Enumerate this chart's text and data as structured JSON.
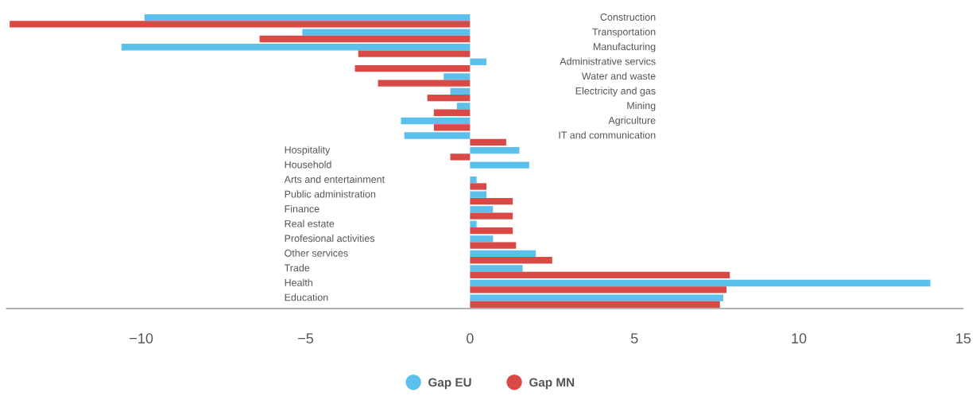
{
  "chart_data": {
    "type": "bar",
    "orientation": "horizontal",
    "categories": [
      "Construction",
      "Transportation",
      "Manufacturing",
      "Administrative servics",
      "Water and waste",
      "Electricity and gas",
      "Mining",
      "Agriculture",
      "IT and communication",
      "Hospitality",
      "Household",
      "Arts and entertainment",
      "Public administration",
      "Finance",
      "Real estate",
      "Profesional activities",
      "Other services",
      "Trade",
      "Health",
      "Education"
    ],
    "series": [
      {
        "name": "Gap EU",
        "color": "#5bc0eb",
        "values": [
          -9.9,
          -5.1,
          -10.6,
          0.5,
          -0.8,
          -0.6,
          -0.4,
          -2.1,
          -2.0,
          1.5,
          1.8,
          0.2,
          0.5,
          0.7,
          0.2,
          0.7,
          2.0,
          1.6,
          14.0,
          7.7
        ]
      },
      {
        "name": "Gap MN",
        "color": "#d94a47",
        "values": [
          -14.0,
          -6.4,
          -3.4,
          -3.5,
          -2.8,
          -1.3,
          -1.1,
          -1.1,
          1.1,
          -0.6,
          null,
          0.5,
          1.3,
          1.3,
          1.3,
          1.4,
          2.5,
          7.9,
          7.8,
          7.6
        ]
      }
    ],
    "xlim": [
      -14.1,
      15
    ],
    "xticks": [
      {
        "value": -10,
        "label": "−10"
      },
      {
        "value": -5,
        "label": "−5"
      },
      0,
      5,
      10,
      15
    ],
    "grid": false,
    "legend": "bottom",
    "marker": "circle"
  }
}
